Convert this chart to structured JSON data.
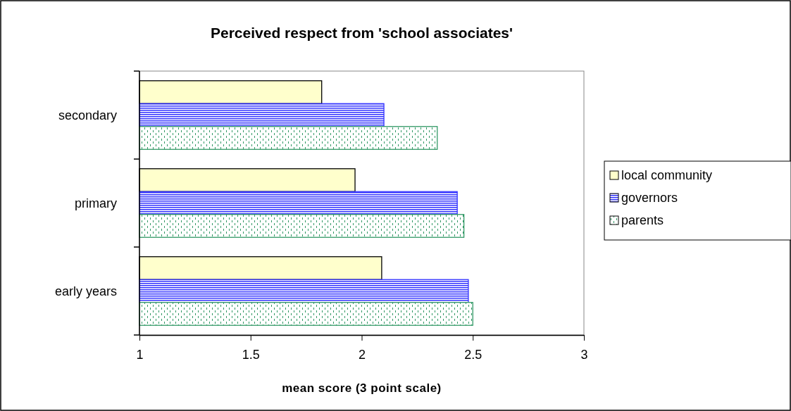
{
  "chart_data": {
    "type": "bar",
    "orientation": "horizontal",
    "title": "Perceived respect from 'school associates'",
    "xlabel": "mean score (3 point scale)",
    "categories": [
      "secondary",
      "primary",
      "early years"
    ],
    "series": [
      {
        "name": "local community",
        "color": "#ffffcc",
        "values": [
          1.82,
          1.97,
          2.09
        ]
      },
      {
        "name": "governors",
        "color": "#3333ff",
        "values": [
          2.1,
          2.43,
          2.48
        ]
      },
      {
        "name": "parents",
        "color": "#339966",
        "values": [
          2.34,
          2.46,
          2.5
        ]
      }
    ],
    "xlim": [
      1,
      3
    ],
    "xticks": [
      1,
      1.5,
      2,
      2.5,
      3
    ],
    "grid": false,
    "legend": "right"
  }
}
